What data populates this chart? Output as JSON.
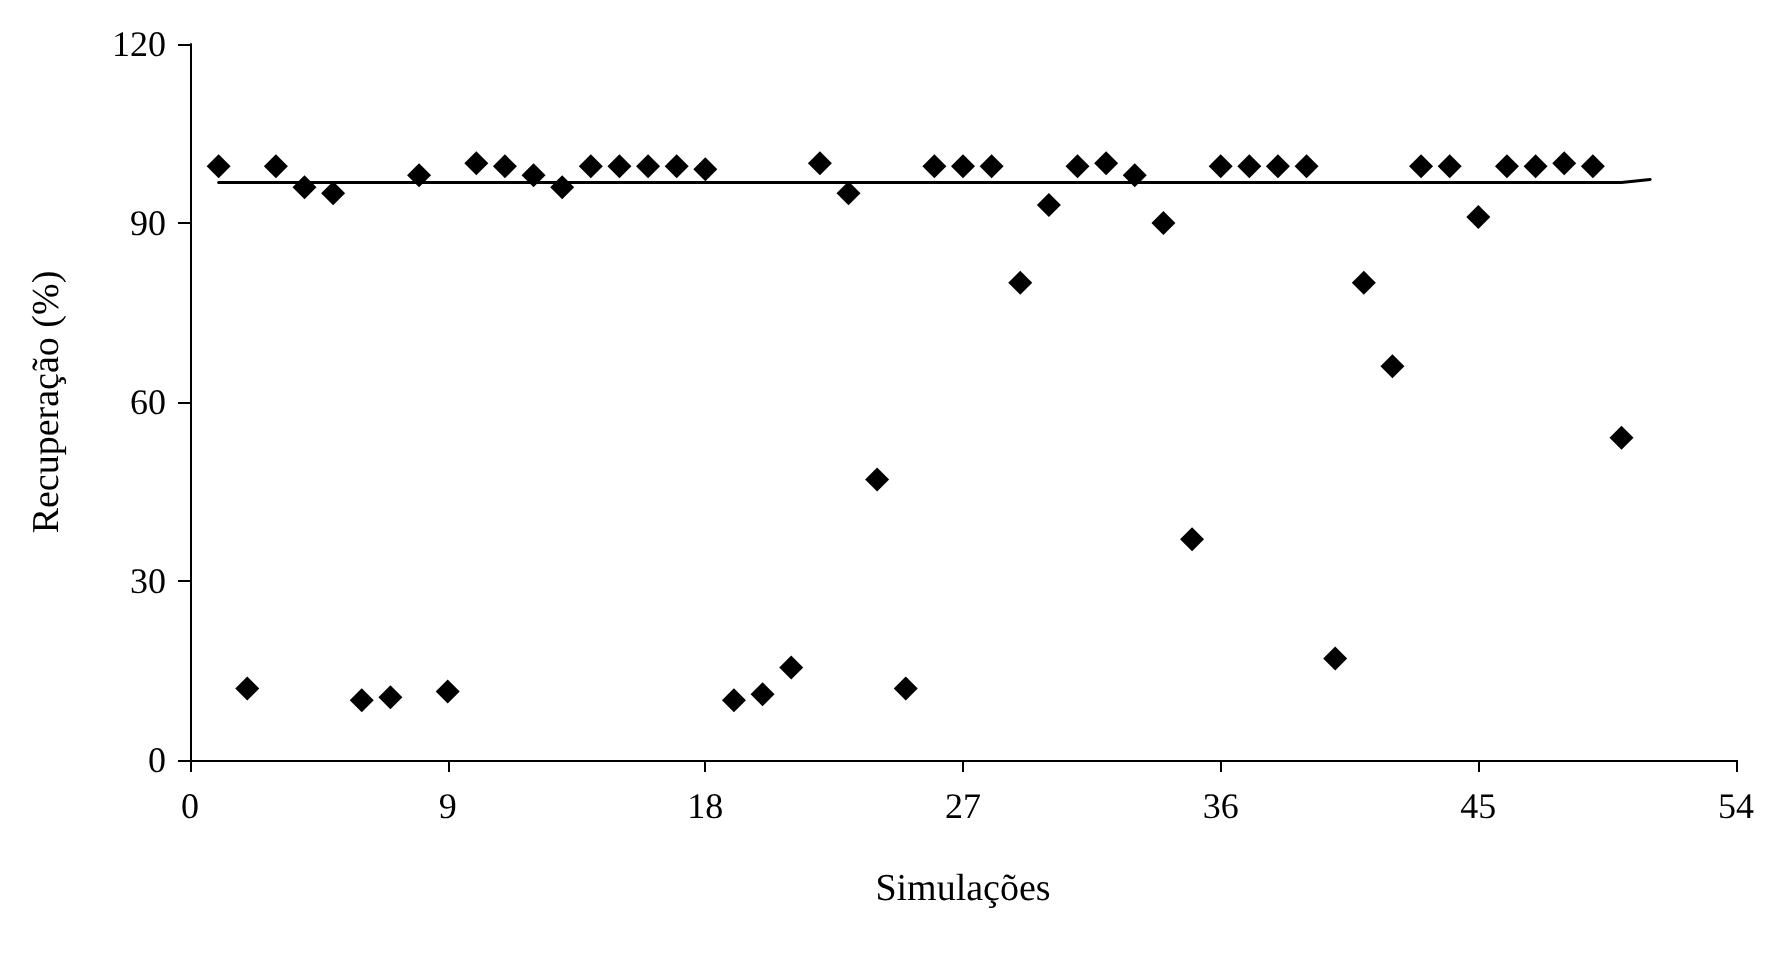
{
  "chart_data": {
    "type": "scatter",
    "xlabel": "Simulações",
    "ylabel": "Recuperação (%)",
    "x": [
      1,
      2,
      3,
      4,
      5,
      6,
      7,
      8,
      9,
      10,
      11,
      12,
      13,
      14,
      15,
      16,
      17,
      18,
      19,
      20,
      21,
      22,
      23,
      24,
      25,
      26,
      27,
      28,
      29,
      30,
      31,
      32,
      33,
      34,
      35,
      36,
      37,
      38,
      39,
      40,
      41,
      42,
      43,
      44,
      45,
      46,
      47,
      48,
      49,
      50
    ],
    "series": [
      {
        "color": "#000000",
        "marker": "diamond",
        "values": [
          99.5,
          12,
          99.5,
          96,
          95,
          10,
          10.5,
          98,
          11.5,
          100,
          99.5,
          98,
          96,
          99.5,
          99.5,
          99.5,
          99.5,
          99,
          10,
          11,
          15.5,
          100,
          95,
          47,
          12,
          99.5,
          99.5,
          99.5,
          80,
          93,
          99.5,
          100,
          98,
          90,
          37,
          99.5,
          99.5,
          99.5,
          99.5,
          17,
          80,
          66,
          99.5,
          99.5,
          91,
          99.5,
          99.5,
          100,
          99.5,
          54
        ]
      },
      {
        "type": "line",
        "color": "#000000",
        "marker": "none",
        "line_style": "solid",
        "x": [
          1,
          50,
          51
        ],
        "values": [
          96.8,
          96.8,
          97.3
        ]
      }
    ],
    "xlim": [
      0,
      54
    ],
    "xticks": [
      0,
      9,
      18,
      27,
      36,
      45,
      54
    ],
    "ylim": [
      0,
      120
    ],
    "yticks": [
      0,
      30,
      60,
      90,
      120
    ],
    "grid": false
  }
}
